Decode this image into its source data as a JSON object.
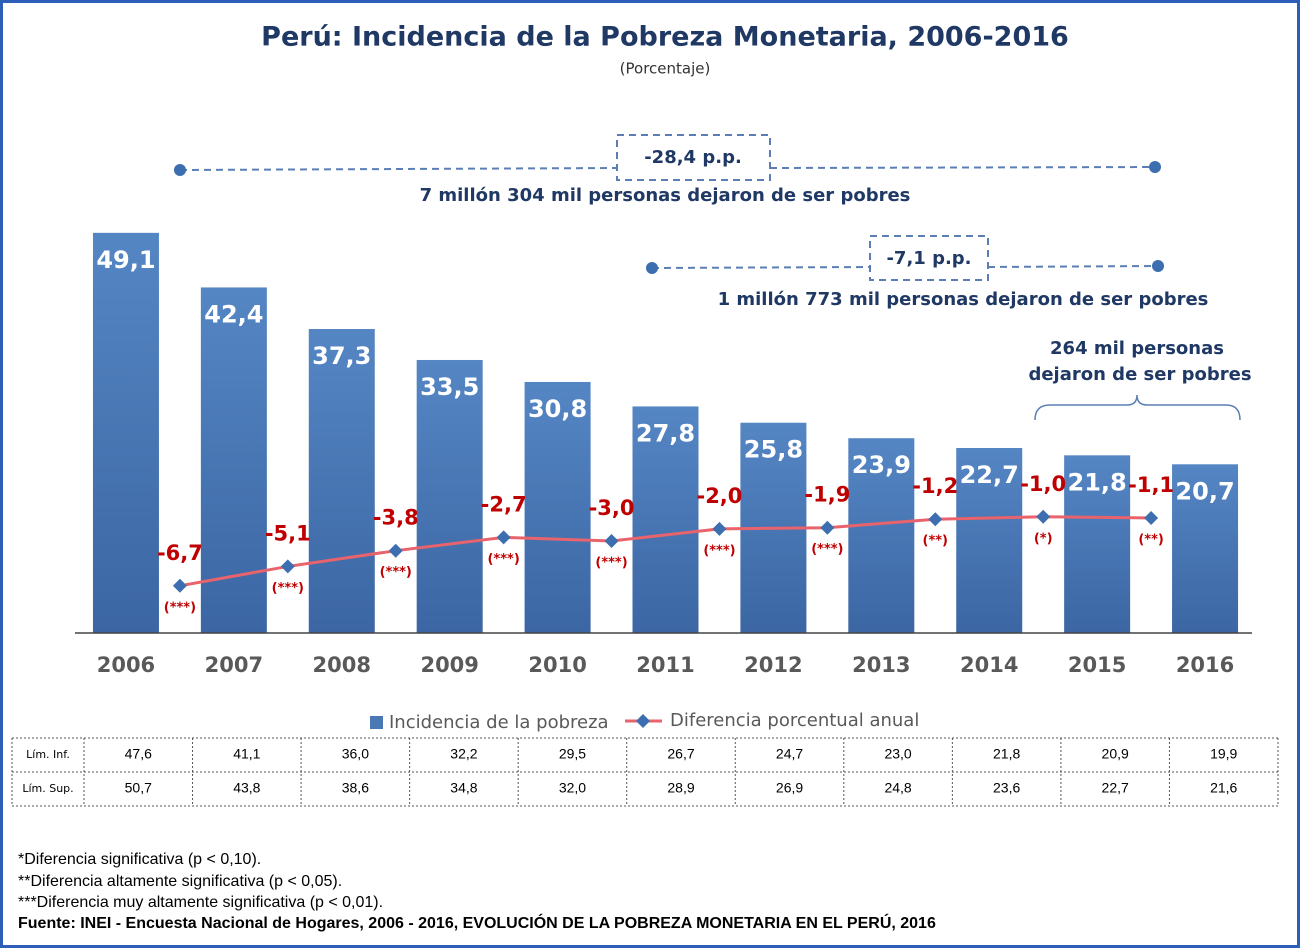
{
  "chart_data": {
    "type": "bar",
    "title": "Perú: Incidencia de la Pobreza Monetaria, 2006-2016",
    "subtitle": "(Porcentaje)",
    "categories": [
      "2006",
      "2007",
      "2008",
      "2009",
      "2010",
      "2011",
      "2012",
      "2013",
      "2014",
      "2015",
      "2016"
    ],
    "ylim": [
      0,
      60
    ],
    "y2lim": [
      -10.6,
      29.8
    ],
    "series": [
      {
        "name": "Incidencia de la pobreza",
        "type": "bar",
        "color": "#4a78b5",
        "values": [
          49.1,
          42.4,
          37.3,
          33.5,
          30.8,
          27.8,
          25.8,
          23.9,
          22.7,
          21.8,
          20.7
        ],
        "value_labels": [
          "49,1",
          "42,4",
          "37,3",
          "33,5",
          "30,8",
          "27,8",
          "25,8",
          "23,9",
          "22,7",
          "21,8",
          "20,7"
        ]
      },
      {
        "name": "Diferencia porcentual anual",
        "type": "line",
        "axis": "y2",
        "color": "#e8636b",
        "marker_color": "#3d6fb0",
        "values": [
          null,
          -6.7,
          -5.1,
          -3.8,
          -2.7,
          -3.0,
          -2.0,
          -1.9,
          -1.2,
          -1.0,
          -1.1
        ],
        "value_labels": [
          null,
          "-6,7",
          "-5,1",
          "-3,8",
          "-2,7",
          "-3,0",
          "-2,0",
          "-1,9",
          "-1,2",
          "-1,0",
          "-1,1"
        ],
        "significance": [
          null,
          "(***)",
          "(***)",
          "(***)",
          "(***)",
          "(***)",
          "(***)",
          "(***)",
          "(**)",
          "(*)",
          "(**)"
        ]
      }
    ],
    "annotations": [
      "-28,4 p.p.",
      "7 millón 304 mil personas dejaron de ser pobres",
      "-7,1 p.p.",
      "1 millón 773 mil personas dejaron de ser pobres",
      "264 mil personas",
      "dejaron de ser pobres"
    ],
    "table": {
      "rows": [
        {
          "label": "Lím. Inf.",
          "values": [
            "47,6",
            "41,1",
            "36,0",
            "32,2",
            "29,5",
            "26,7",
            "24,7",
            "23,0",
            "21,8",
            "20,9",
            "19,9"
          ]
        },
        {
          "label": "Lím. Sup.",
          "values": [
            "50,7",
            "43,8",
            "38,6",
            "34,8",
            "32,0",
            "28,9",
            "26,9",
            "24,8",
            "23,6",
            "22,7",
            "21,6"
          ]
        }
      ]
    },
    "footnotes": [
      "*Diferencia significativa (p < 0,10).",
      "**Diferencia altamente significativa (p < 0,05).",
      "***Diferencia muy altamente significativa (p < 0,01)."
    ],
    "source": "Fuente: INEI - Encuesta Nacional de Hogares, 2006 - 2016, EVOLUCIÓN DE LA POBREZA MONETARIA EN EL PERÚ, 2016"
  }
}
